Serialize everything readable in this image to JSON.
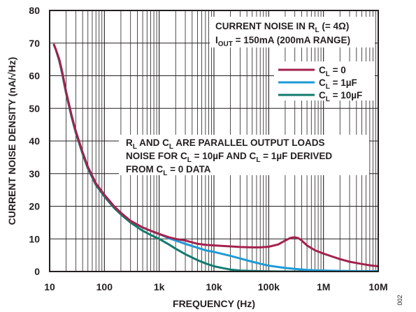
{
  "chart_data": {
    "type": "line",
    "xlabel": "FREQUENCY (Hz)",
    "ylabel": "CURRENT NOISE DENSITY (nA/√Hz)",
    "xscale": "log",
    "xlim": [
      10,
      10000000
    ],
    "ylim": [
      0,
      80
    ],
    "x_tick_values": [
      10,
      100,
      1000,
      10000,
      100000,
      1000000,
      10000000
    ],
    "x_tick_labels": [
      "10",
      "100",
      "1k",
      "10k",
      "100k",
      "1M",
      "10M"
    ],
    "y_tick_values": [
      0,
      10,
      20,
      30,
      40,
      50,
      60,
      70,
      80
    ],
    "y_tick_labels": [
      "0",
      "10",
      "20",
      "30",
      "40",
      "50",
      "60",
      "70",
      "80"
    ],
    "grid": true,
    "legend_position": "top-right",
    "annotations": {
      "title_line1": "CURRENT NOISE IN R",
      "title_line1_sub": "L",
      "title_line1_tail": " (= 4Ω)",
      "title_line2": "I",
      "title_line2_sub": "OUT",
      "title_line2_tail": " = 150mA (200mA RANGE)",
      "note_line1_a": "R",
      "note_line1_a_sub": "L",
      "note_line1_b": " AND C",
      "note_line1_b_sub": "L",
      "note_line1_c": " ARE PARALLEL OUTPUT LOADS",
      "note_line2_a": "NOISE FOR C",
      "note_line2_a_sub": "L",
      "note_line2_b": " = 10µF AND C",
      "note_line2_b_sub": "L",
      "note_line2_c": " = 1µF DERIVED",
      "note_line3_a": "FROM C",
      "note_line3_a_sub": "L",
      "note_line3_b": " = 0 DATA"
    },
    "figure_id": "002",
    "series": [
      {
        "name": "C",
        "name_sub": "L",
        "name_tail": " = 0",
        "color": "#a3224d",
        "x": [
          12,
          13,
          15,
          17,
          20,
          25,
          30,
          40,
          50,
          70,
          100,
          150,
          200,
          300,
          500,
          700,
          1000,
          1500,
          2000,
          3000,
          5000,
          7000,
          10000,
          20000,
          30000,
          50000,
          70000,
          100000,
          150000,
          200000,
          250000,
          300000,
          350000,
          400000,
          500000,
          700000,
          1000000,
          1500000,
          2000000,
          3000000,
          5000000,
          7000000,
          10000000
        ],
        "y": [
          69.5,
          68,
          65,
          61,
          55,
          48,
          43,
          36.5,
          32,
          27,
          23.5,
          20,
          18,
          15.5,
          13.5,
          12.5,
          11.5,
          10.5,
          10,
          9.5,
          8.5,
          8.2,
          8,
          7.7,
          7.5,
          7.4,
          7.4,
          7.6,
          8.3,
          9.5,
          10.3,
          10.5,
          10.2,
          9.5,
          8,
          6.5,
          5.5,
          4.5,
          3.8,
          3,
          2.3,
          1.9,
          1.6
        ]
      },
      {
        "name": "C",
        "name_sub": "L",
        "name_tail": " = 1µF",
        "color": "#1e9ad6",
        "x": [
          12,
          13,
          15,
          17,
          20,
          25,
          30,
          40,
          50,
          70,
          100,
          150,
          200,
          300,
          500,
          700,
          1000,
          1500,
          2000,
          3000,
          5000,
          7000,
          10000,
          20000,
          30000,
          50000,
          70000,
          100000,
          200000,
          300000,
          500000,
          1000000,
          2000000,
          5000000,
          10000000
        ],
        "y": [
          69.5,
          68,
          65,
          61,
          55,
          48,
          43,
          36.5,
          32,
          27,
          23.5,
          20,
          18,
          15.5,
          13.5,
          12.5,
          11.5,
          10.2,
          9.5,
          8.5,
          7.3,
          6.5,
          6,
          4.8,
          4,
          3,
          2.4,
          1.8,
          1.1,
          0.8,
          0.5,
          0.3,
          0.2,
          0.1,
          0.1
        ]
      },
      {
        "name": "C",
        "name_sub": "L",
        "name_tail": " = 10µF",
        "color": "#127b6f",
        "x": [
          12,
          13,
          15,
          17,
          20,
          25,
          30,
          40,
          50,
          70,
          100,
          150,
          200,
          300,
          500,
          700,
          1000,
          1500,
          2000,
          3000,
          5000,
          7000,
          10000,
          15000,
          20000,
          30000,
          50000,
          100000,
          200000,
          500000,
          1000000,
          10000000
        ],
        "y": [
          69.5,
          68,
          64.5,
          60.5,
          54.5,
          47.5,
          42.5,
          36,
          31.5,
          26.5,
          23,
          19.5,
          17.5,
          15,
          12.5,
          11.2,
          10,
          8.3,
          7,
          5.3,
          3.5,
          2.5,
          1.6,
          1,
          0.6,
          0.3,
          0.15,
          0.05,
          0,
          0,
          0,
          0
        ]
      }
    ]
  }
}
